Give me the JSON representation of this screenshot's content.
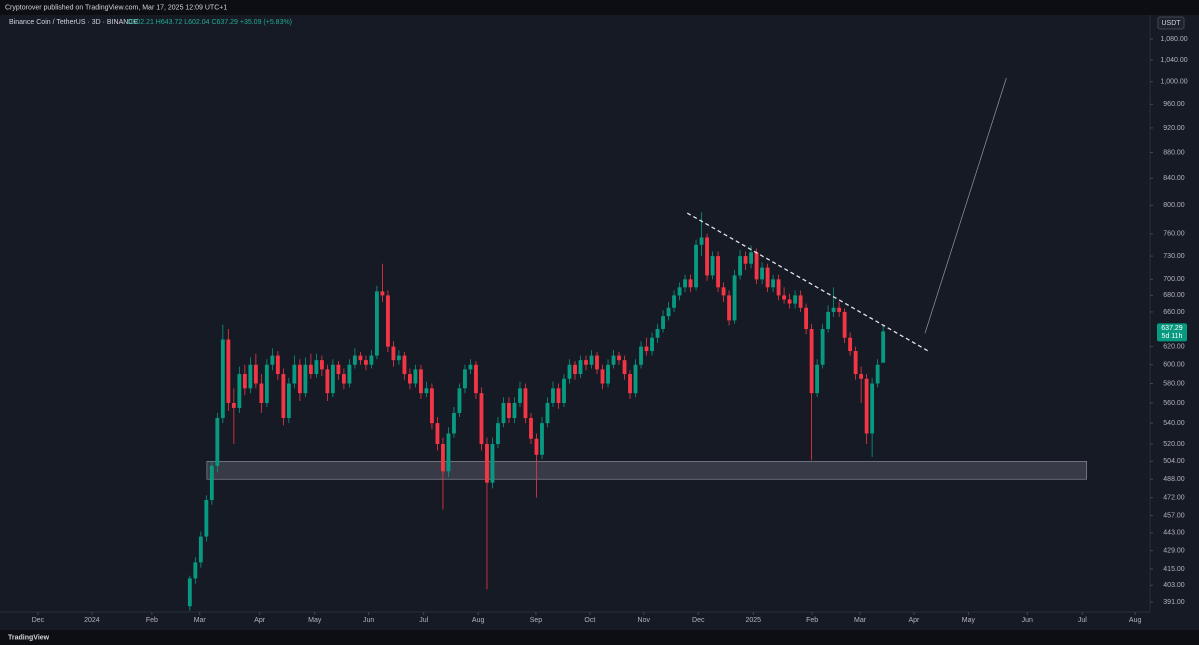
{
  "header": {
    "publisher": "Cryptorover published on TradingView.com, Mar 17, 2025 12:09 UTC+1",
    "symbol": "Binance Coin / TetherUS · 3D · BINANCE",
    "ohlc": "O602.21 H643.72 L602.04 C637.29 +35.09 (+5.83%)",
    "currency": "USDT",
    "last_price": "637.29",
    "countdown": "5d 11h",
    "brand": "TradingView"
  },
  "chart_data": {
    "type": "candlestick",
    "log_scale": true,
    "up_color": "#089981",
    "down_color": "#f23645",
    "xlim": [
      -34.5,
      174.5
    ],
    "xticks": [
      {
        "value": -27.6,
        "label": "Dec"
      },
      {
        "value": -17.8,
        "label": "2024"
      },
      {
        "value": -6.9,
        "label": "Feb"
      },
      {
        "value": 1.8,
        "label": "Mar"
      },
      {
        "value": 12.7,
        "label": "Apr"
      },
      {
        "value": 22.7,
        "label": "May"
      },
      {
        "value": 32.5,
        "label": "Jun"
      },
      {
        "value": 42.5,
        "label": "Jul"
      },
      {
        "value": 52.4,
        "label": "Aug"
      },
      {
        "value": 62.9,
        "label": "Sep"
      },
      {
        "value": 72.7,
        "label": "Oct"
      },
      {
        "value": 82.5,
        "label": "Nov"
      },
      {
        "value": 92.4,
        "label": "Dec"
      },
      {
        "value": 102.4,
        "label": "2025"
      },
      {
        "value": 113.1,
        "label": "Feb"
      },
      {
        "value": 121.8,
        "label": "Mar"
      },
      {
        "value": 131.6,
        "label": "Apr"
      },
      {
        "value": 141.5,
        "label": "May"
      },
      {
        "value": 152.2,
        "label": "Jun"
      },
      {
        "value": 162.2,
        "label": "Jul"
      },
      {
        "value": 171.8,
        "label": "Aug"
      }
    ],
    "ylim": [
      384,
      1128
    ],
    "yticks": [
      {
        "value": 391,
        "label": "391.00"
      },
      {
        "value": 403,
        "label": "403.00"
      },
      {
        "value": 415,
        "label": "415.00"
      },
      {
        "value": 429,
        "label": "429.00"
      },
      {
        "value": 443,
        "label": "443.00"
      },
      {
        "value": 457,
        "label": "457.00"
      },
      {
        "value": 472,
        "label": "472.00"
      },
      {
        "value": 488,
        "label": "488.00"
      },
      {
        "value": 504,
        "label": "504.00"
      },
      {
        "value": 520,
        "label": "520.00"
      },
      {
        "value": 540,
        "label": "540.00"
      },
      {
        "value": 560,
        "label": "560.00"
      },
      {
        "value": 580,
        "label": "580.00"
      },
      {
        "value": 600,
        "label": "600.00"
      },
      {
        "value": 620,
        "label": "620.00"
      },
      {
        "value": 660,
        "label": "660.00"
      },
      {
        "value": 680,
        "label": "680.00"
      },
      {
        "value": 700,
        "label": "700.00"
      },
      {
        "value": 730,
        "label": "730.00"
      },
      {
        "value": 760,
        "label": "760.00"
      },
      {
        "value": 800,
        "label": "800.00"
      },
      {
        "value": 840,
        "label": "840.00"
      },
      {
        "value": 880,
        "label": "880.00"
      },
      {
        "value": 920,
        "label": "920.00"
      },
      {
        "value": 960,
        "label": "960.00"
      },
      {
        "value": 1000,
        "label": "1,000.00"
      },
      {
        "value": 1040,
        "label": "1,040.00"
      },
      {
        "value": 1080,
        "label": "1,080.00"
      }
    ],
    "ohlc": [
      [
        388,
        410,
        385,
        408
      ],
      [
        408,
        424,
        404,
        420
      ],
      [
        420,
        444,
        416,
        440
      ],
      [
        440,
        474,
        436,
        470
      ],
      [
        470,
        504,
        466,
        500
      ],
      [
        500,
        550,
        494,
        545
      ],
      [
        545,
        645,
        540,
        628
      ],
      [
        628,
        640,
        552,
        560
      ],
      [
        560,
        575,
        520,
        555
      ],
      [
        555,
        598,
        550,
        590
      ],
      [
        590,
        600,
        568,
        575
      ],
      [
        575,
        608,
        570,
        600
      ],
      [
        600,
        612,
        575,
        580
      ],
      [
        580,
        590,
        550,
        560
      ],
      [
        560,
        606,
        556,
        600
      ],
      [
        600,
        618,
        594,
        610
      ],
      [
        610,
        615,
        584,
        590
      ],
      [
        590,
        596,
        538,
        545
      ],
      [
        545,
        586,
        540,
        580
      ],
      [
        580,
        610,
        575,
        600
      ],
      [
        600,
        606,
        562,
        570
      ],
      [
        570,
        608,
        566,
        600
      ],
      [
        600,
        612,
        585,
        590
      ],
      [
        590,
        612,
        586,
        605
      ],
      [
        605,
        610,
        588,
        595
      ],
      [
        595,
        600,
        562,
        570
      ],
      [
        570,
        606,
        566,
        600
      ],
      [
        600,
        604,
        584,
        590
      ],
      [
        590,
        596,
        574,
        580
      ],
      [
        580,
        606,
        576,
        600
      ],
      [
        600,
        618,
        596,
        610
      ],
      [
        610,
        614,
        600,
        605
      ],
      [
        605,
        610,
        594,
        600
      ],
      [
        600,
        616,
        596,
        610
      ],
      [
        610,
        692,
        606,
        685
      ],
      [
        685,
        720,
        672,
        680
      ],
      [
        680,
        686,
        614,
        620
      ],
      [
        620,
        626,
        598,
        605
      ],
      [
        605,
        616,
        600,
        610
      ],
      [
        610,
        614,
        584,
        590
      ],
      [
        590,
        596,
        574,
        580
      ],
      [
        580,
        600,
        576,
        595
      ],
      [
        595,
        600,
        564,
        570
      ],
      [
        570,
        582,
        566,
        575
      ],
      [
        575,
        580,
        534,
        540
      ],
      [
        540,
        546,
        514,
        520
      ],
      [
        520,
        526,
        462,
        495
      ],
      [
        495,
        536,
        490,
        530
      ],
      [
        530,
        556,
        526,
        550
      ],
      [
        550,
        580,
        546,
        575
      ],
      [
        575,
        600,
        570,
        595
      ],
      [
        595,
        606,
        590,
        600
      ],
      [
        600,
        604,
        564,
        570
      ],
      [
        570,
        576,
        514,
        520
      ],
      [
        520,
        526,
        400,
        485
      ],
      [
        485,
        526,
        480,
        520
      ],
      [
        520,
        546,
        516,
        540
      ],
      [
        540,
        566,
        536,
        560
      ],
      [
        560,
        566,
        540,
        545
      ],
      [
        545,
        566,
        540,
        560
      ],
      [
        560,
        582,
        556,
        575
      ],
      [
        575,
        580,
        540,
        545
      ],
      [
        545,
        550,
        520,
        525
      ],
      [
        525,
        530,
        472,
        510
      ],
      [
        510,
        546,
        506,
        540
      ],
      [
        540,
        566,
        536,
        560
      ],
      [
        560,
        582,
        556,
        575
      ],
      [
        575,
        580,
        554,
        560
      ],
      [
        560,
        590,
        556,
        585
      ],
      [
        585,
        606,
        580,
        600
      ],
      [
        600,
        604,
        584,
        590
      ],
      [
        590,
        610,
        586,
        605
      ],
      [
        605,
        610,
        594,
        600
      ],
      [
        600,
        616,
        596,
        610
      ],
      [
        610,
        614,
        590,
        595
      ],
      [
        595,
        600,
        574,
        580
      ],
      [
        580,
        606,
        576,
        600
      ],
      [
        600,
        616,
        596,
        610
      ],
      [
        610,
        614,
        600,
        605
      ],
      [
        605,
        610,
        584,
        590
      ],
      [
        590,
        594,
        564,
        570
      ],
      [
        570,
        606,
        566,
        600
      ],
      [
        600,
        626,
        596,
        620
      ],
      [
        620,
        630,
        610,
        615
      ],
      [
        615,
        636,
        610,
        630
      ],
      [
        630,
        646,
        624,
        640
      ],
      [
        640,
        662,
        636,
        655
      ],
      [
        655,
        672,
        650,
        665
      ],
      [
        665,
        686,
        660,
        680
      ],
      [
        680,
        696,
        674,
        690
      ],
      [
        690,
        706,
        684,
        700
      ],
      [
        700,
        706,
        684,
        690
      ],
      [
        690,
        752,
        686,
        745
      ],
      [
        745,
        790,
        730,
        755
      ],
      [
        755,
        760,
        698,
        705
      ],
      [
        705,
        736,
        700,
        730
      ],
      [
        730,
        736,
        684,
        690
      ],
      [
        690,
        696,
        672,
        680
      ],
      [
        680,
        686,
        644,
        650
      ],
      [
        650,
        712,
        646,
        705
      ],
      [
        705,
        738,
        700,
        730
      ],
      [
        730,
        736,
        712,
        720
      ],
      [
        720,
        744,
        714,
        735
      ],
      [
        735,
        740,
        694,
        700
      ],
      [
        700,
        722,
        694,
        715
      ],
      [
        715,
        720,
        684,
        690
      ],
      [
        690,
        706,
        684,
        700
      ],
      [
        700,
        706,
        674,
        680
      ],
      [
        680,
        690,
        670,
        675
      ],
      [
        675,
        682,
        664,
        670
      ],
      [
        670,
        686,
        664,
        680
      ],
      [
        680,
        686,
        660,
        665
      ],
      [
        665,
        670,
        634,
        640
      ],
      [
        640,
        646,
        505,
        570
      ],
      [
        570,
        606,
        566,
        600
      ],
      [
        600,
        646,
        596,
        640
      ],
      [
        640,
        668,
        636,
        660
      ],
      [
        660,
        690,
        654,
        665
      ],
      [
        665,
        672,
        654,
        660
      ],
      [
        660,
        664,
        624,
        630
      ],
      [
        630,
        636,
        610,
        615
      ],
      [
        615,
        620,
        584,
        590
      ],
      [
        590,
        598,
        560,
        585
      ],
      [
        585,
        590,
        520,
        530
      ],
      [
        530,
        586,
        508,
        580
      ],
      [
        580,
        606,
        576,
        600
      ],
      [
        602.21,
        643.72,
        602.04,
        637.29
      ]
    ],
    "drawings": {
      "zone": [
        3.1,
        163,
        488,
        504
      ],
      "trendline": [
        90.4,
        789,
        134.5,
        614
      ],
      "projection": [
        133.6,
        635,
        148.4,
        1007
      ]
    }
  }
}
